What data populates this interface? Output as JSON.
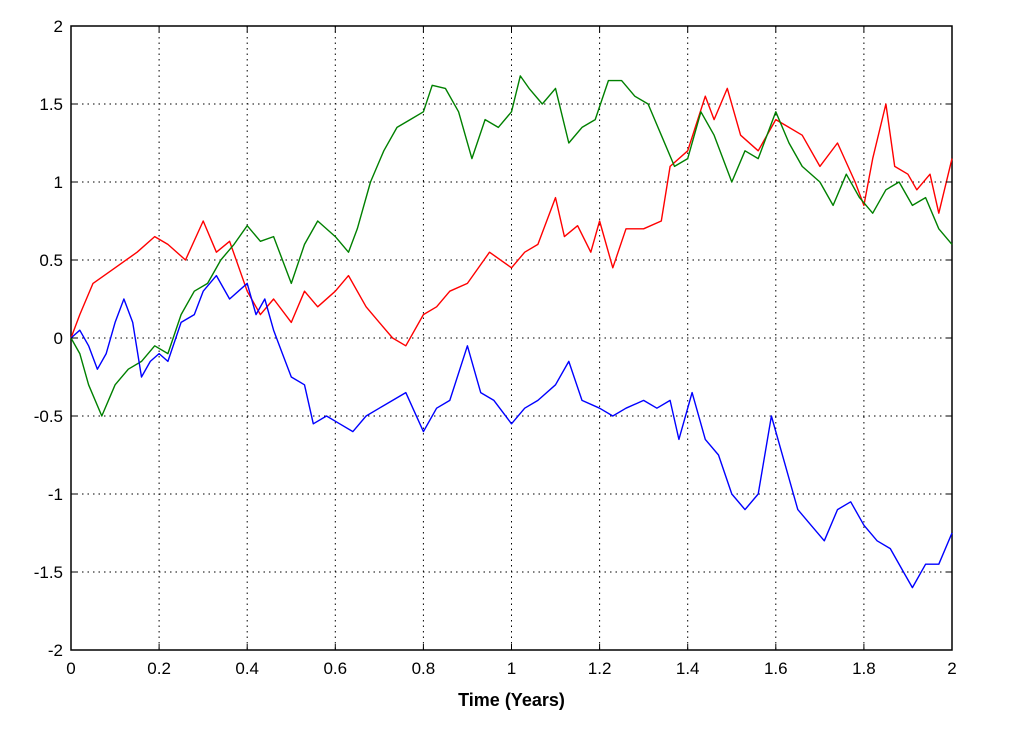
{
  "chart_data": {
    "type": "line",
    "title": "",
    "xlabel": "Time (Years)",
    "ylabel": "",
    "xlim": [
      0,
      2
    ],
    "ylim": [
      -2,
      2
    ],
    "xticks": [
      "0",
      "0.2",
      "0.4",
      "0.6",
      "0.8",
      "1",
      "1.2",
      "1.4",
      "1.6",
      "1.8",
      "2"
    ],
    "yticks": [
      "2",
      "1.5",
      "1",
      "0.5",
      "0",
      "-0.5",
      "-1",
      "-1.5",
      "-2"
    ],
    "grid": true,
    "legend": "none",
    "series": [
      {
        "color": "#ff0000",
        "x": [
          0,
          0.02,
          0.05,
          0.1,
          0.15,
          0.19,
          0.22,
          0.26,
          0.3,
          0.33,
          0.36,
          0.4,
          0.43,
          0.46,
          0.5,
          0.53,
          0.56,
          0.6,
          0.63,
          0.67,
          0.7,
          0.73,
          0.76,
          0.8,
          0.83,
          0.86,
          0.9,
          0.95,
          1.0,
          1.03,
          1.06,
          1.1,
          1.12,
          1.15,
          1.18,
          1.2,
          1.23,
          1.26,
          1.3,
          1.34,
          1.36,
          1.4,
          1.44,
          1.46,
          1.49,
          1.52,
          1.56,
          1.6,
          1.63,
          1.66,
          1.7,
          1.74,
          1.78,
          1.8,
          1.82,
          1.85,
          1.87,
          1.9,
          1.92,
          1.95,
          1.97,
          2.0
        ],
        "y": [
          0.0,
          0.15,
          0.35,
          0.45,
          0.55,
          0.65,
          0.6,
          0.5,
          0.75,
          0.55,
          0.62,
          0.3,
          0.15,
          0.25,
          0.1,
          0.3,
          0.2,
          0.3,
          0.4,
          0.2,
          0.1,
          0.0,
          -0.05,
          0.15,
          0.2,
          0.3,
          0.35,
          0.55,
          0.45,
          0.55,
          0.6,
          0.9,
          0.65,
          0.72,
          0.55,
          0.75,
          0.45,
          0.7,
          0.7,
          0.75,
          1.1,
          1.2,
          1.55,
          1.4,
          1.6,
          1.3,
          1.2,
          1.4,
          1.35,
          1.3,
          1.1,
          1.25,
          1.0,
          0.85,
          1.15,
          1.5,
          1.1,
          1.05,
          0.95,
          1.05,
          0.8,
          1.15
        ]
      },
      {
        "color": "#008000",
        "x": [
          0,
          0.02,
          0.04,
          0.07,
          0.1,
          0.13,
          0.16,
          0.19,
          0.22,
          0.25,
          0.28,
          0.31,
          0.34,
          0.37,
          0.4,
          0.43,
          0.46,
          0.5,
          0.53,
          0.56,
          0.6,
          0.63,
          0.65,
          0.68,
          0.71,
          0.74,
          0.77,
          0.8,
          0.82,
          0.85,
          0.88,
          0.91,
          0.94,
          0.97,
          1.0,
          1.02,
          1.04,
          1.07,
          1.1,
          1.13,
          1.16,
          1.19,
          1.22,
          1.25,
          1.28,
          1.31,
          1.34,
          1.37,
          1.4,
          1.43,
          1.46,
          1.5,
          1.53,
          1.56,
          1.6,
          1.63,
          1.66,
          1.7,
          1.73,
          1.76,
          1.79,
          1.82,
          1.85,
          1.88,
          1.91,
          1.94,
          1.97,
          2.0
        ],
        "y": [
          0.0,
          -0.1,
          -0.3,
          -0.5,
          -0.3,
          -0.2,
          -0.15,
          -0.05,
          -0.1,
          0.15,
          0.3,
          0.35,
          0.5,
          0.6,
          0.72,
          0.62,
          0.65,
          0.35,
          0.6,
          0.75,
          0.65,
          0.55,
          0.7,
          1.0,
          1.2,
          1.35,
          1.4,
          1.45,
          1.62,
          1.6,
          1.45,
          1.15,
          1.4,
          1.35,
          1.45,
          1.68,
          1.6,
          1.5,
          1.6,
          1.25,
          1.35,
          1.4,
          1.65,
          1.65,
          1.55,
          1.5,
          1.3,
          1.1,
          1.15,
          1.45,
          1.3,
          1.0,
          1.2,
          1.15,
          1.45,
          1.25,
          1.1,
          1.0,
          0.85,
          1.05,
          0.9,
          0.8,
          0.95,
          1.0,
          0.85,
          0.9,
          0.7,
          0.6
        ]
      },
      {
        "color": "#0000ff",
        "x": [
          0,
          0.02,
          0.04,
          0.06,
          0.08,
          0.1,
          0.12,
          0.14,
          0.16,
          0.18,
          0.2,
          0.22,
          0.25,
          0.28,
          0.3,
          0.33,
          0.36,
          0.38,
          0.4,
          0.42,
          0.44,
          0.46,
          0.48,
          0.5,
          0.53,
          0.55,
          0.58,
          0.61,
          0.64,
          0.67,
          0.7,
          0.73,
          0.76,
          0.8,
          0.83,
          0.86,
          0.9,
          0.93,
          0.96,
          1.0,
          1.03,
          1.06,
          1.1,
          1.13,
          1.16,
          1.2,
          1.23,
          1.26,
          1.3,
          1.33,
          1.36,
          1.38,
          1.41,
          1.44,
          1.47,
          1.5,
          1.53,
          1.56,
          1.59,
          1.62,
          1.65,
          1.68,
          1.71,
          1.74,
          1.77,
          1.8,
          1.83,
          1.86,
          1.89,
          1.91,
          1.94,
          1.97,
          2.0
        ],
        "y": [
          0.0,
          0.05,
          -0.05,
          -0.2,
          -0.1,
          0.1,
          0.25,
          0.1,
          -0.25,
          -0.15,
          -0.1,
          -0.15,
          0.1,
          0.15,
          0.3,
          0.4,
          0.25,
          0.3,
          0.35,
          0.15,
          0.25,
          0.05,
          -0.1,
          -0.25,
          -0.3,
          -0.55,
          -0.5,
          -0.55,
          -0.6,
          -0.5,
          -0.45,
          -0.4,
          -0.35,
          -0.6,
          -0.45,
          -0.4,
          -0.05,
          -0.35,
          -0.4,
          -0.55,
          -0.45,
          -0.4,
          -0.3,
          -0.15,
          -0.4,
          -0.45,
          -0.5,
          -0.45,
          -0.4,
          -0.45,
          -0.4,
          -0.65,
          -0.35,
          -0.65,
          -0.75,
          -1.0,
          -1.1,
          -1.0,
          -0.5,
          -0.8,
          -1.1,
          -1.2,
          -1.3,
          -1.1,
          -1.05,
          -1.2,
          -1.3,
          -1.35,
          -1.5,
          -1.6,
          -1.45,
          -1.45,
          -1.25
        ]
      }
    ]
  }
}
